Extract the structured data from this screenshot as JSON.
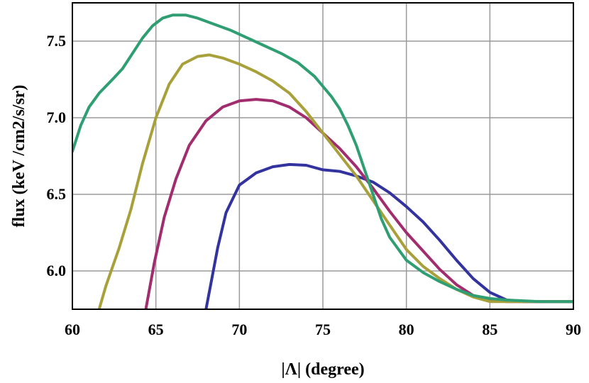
{
  "chart_data": {
    "type": "line",
    "title": "",
    "xlabel": "|Λ| (degree)",
    "ylabel": "flux (keV /cm2/s/sr)",
    "xlim": [
      60,
      90
    ],
    "ylim": [
      5.75,
      7.75
    ],
    "x_ticks": [
      60,
      65,
      70,
      75,
      80,
      85,
      90
    ],
    "x_tick_labels": [
      "60",
      "65",
      "70",
      "75",
      "80",
      "85",
      "90"
    ],
    "y_ticks": [
      6.0,
      6.5,
      7.0,
      7.5
    ],
    "y_tick_labels": [
      "6.0",
      "6.5",
      "7.0",
      "7.5"
    ],
    "grid": true,
    "legend": "none",
    "series": [
      {
        "color": "#33339f",
        "points": [
          [
            68.0,
            5.75
          ],
          [
            68.3,
            5.92
          ],
          [
            68.7,
            6.15
          ],
          [
            69.2,
            6.38
          ],
          [
            70.0,
            6.56
          ],
          [
            71.0,
            6.64
          ],
          [
            72.0,
            6.68
          ],
          [
            73.0,
            6.695
          ],
          [
            74.0,
            6.69
          ],
          [
            75.0,
            6.66
          ],
          [
            76.0,
            6.65
          ],
          [
            77.0,
            6.62
          ],
          [
            78.0,
            6.58
          ],
          [
            79.0,
            6.51
          ],
          [
            80.0,
            6.42
          ],
          [
            81.0,
            6.32
          ],
          [
            82.0,
            6.2
          ],
          [
            83.0,
            6.07
          ],
          [
            84.0,
            5.95
          ],
          [
            85.0,
            5.86
          ],
          [
            86.0,
            5.81
          ],
          [
            87.0,
            5.8
          ],
          [
            88.0,
            5.8
          ],
          [
            90.0,
            5.8
          ]
        ]
      },
      {
        "color": "#a12d6e",
        "points": [
          [
            64.4,
            5.75
          ],
          [
            64.9,
            6.05
          ],
          [
            65.5,
            6.35
          ],
          [
            66.2,
            6.6
          ],
          [
            67.0,
            6.82
          ],
          [
            68.0,
            6.98
          ],
          [
            69.0,
            7.07
          ],
          [
            70.0,
            7.11
          ],
          [
            71.0,
            7.12
          ],
          [
            72.0,
            7.11
          ],
          [
            73.0,
            7.07
          ],
          [
            74.0,
            7.0
          ],
          [
            75.0,
            6.9
          ],
          [
            76.0,
            6.8
          ],
          [
            77.0,
            6.68
          ],
          [
            78.0,
            6.54
          ],
          [
            79.0,
            6.39
          ],
          [
            80.0,
            6.25
          ],
          [
            81.0,
            6.13
          ],
          [
            82.0,
            6.01
          ],
          [
            83.0,
            5.91
          ],
          [
            84.0,
            5.84
          ],
          [
            85.0,
            5.81
          ],
          [
            86.0,
            5.8
          ],
          [
            88.0,
            5.8
          ],
          [
            90.0,
            5.8
          ]
        ]
      },
      {
        "color": "#a8a03a",
        "points": [
          [
            61.6,
            5.75
          ],
          [
            62.0,
            5.9
          ],
          [
            62.8,
            6.15
          ],
          [
            63.5,
            6.4
          ],
          [
            64.2,
            6.7
          ],
          [
            65.0,
            7.0
          ],
          [
            65.8,
            7.22
          ],
          [
            66.6,
            7.35
          ],
          [
            67.5,
            7.4
          ],
          [
            68.2,
            7.41
          ],
          [
            69.0,
            7.39
          ],
          [
            70.0,
            7.35
          ],
          [
            71.0,
            7.3
          ],
          [
            72.0,
            7.24
          ],
          [
            73.0,
            7.16
          ],
          [
            74.0,
            7.04
          ],
          [
            75.0,
            6.9
          ],
          [
            76.0,
            6.76
          ],
          [
            77.0,
            6.62
          ],
          [
            78.0,
            6.46
          ],
          [
            79.0,
            6.3
          ],
          [
            80.0,
            6.14
          ],
          [
            81.0,
            6.03
          ],
          [
            82.0,
            5.95
          ],
          [
            83.0,
            5.88
          ],
          [
            84.0,
            5.83
          ],
          [
            85.0,
            5.8
          ],
          [
            86.0,
            5.8
          ],
          [
            90.0,
            5.8
          ]
        ]
      },
      {
        "color": "#2f9e72",
        "points": [
          [
            60.0,
            6.78
          ],
          [
            60.5,
            6.95
          ],
          [
            61.0,
            7.07
          ],
          [
            61.6,
            7.16
          ],
          [
            62.4,
            7.25
          ],
          [
            63.0,
            7.32
          ],
          [
            63.6,
            7.42
          ],
          [
            64.2,
            7.52
          ],
          [
            64.8,
            7.6
          ],
          [
            65.4,
            7.65
          ],
          [
            66.0,
            7.67
          ],
          [
            66.8,
            7.67
          ],
          [
            67.5,
            7.65
          ],
          [
            68.5,
            7.61
          ],
          [
            69.5,
            7.57
          ],
          [
            70.5,
            7.52
          ],
          [
            71.5,
            7.47
          ],
          [
            72.5,
            7.42
          ],
          [
            73.5,
            7.36
          ],
          [
            74.5,
            7.27
          ],
          [
            75.5,
            7.14
          ],
          [
            76.0,
            7.06
          ],
          [
            76.5,
            6.95
          ],
          [
            77.0,
            6.82
          ],
          [
            77.5,
            6.66
          ],
          [
            78.0,
            6.5
          ],
          [
            78.5,
            6.34
          ],
          [
            79.0,
            6.22
          ],
          [
            80.0,
            6.07
          ],
          [
            81.0,
            5.99
          ],
          [
            82.0,
            5.93
          ],
          [
            83.0,
            5.88
          ],
          [
            84.0,
            5.84
          ],
          [
            85.0,
            5.82
          ],
          [
            86.0,
            5.81
          ],
          [
            88.0,
            5.8
          ],
          [
            90.0,
            5.8
          ]
        ]
      }
    ]
  }
}
